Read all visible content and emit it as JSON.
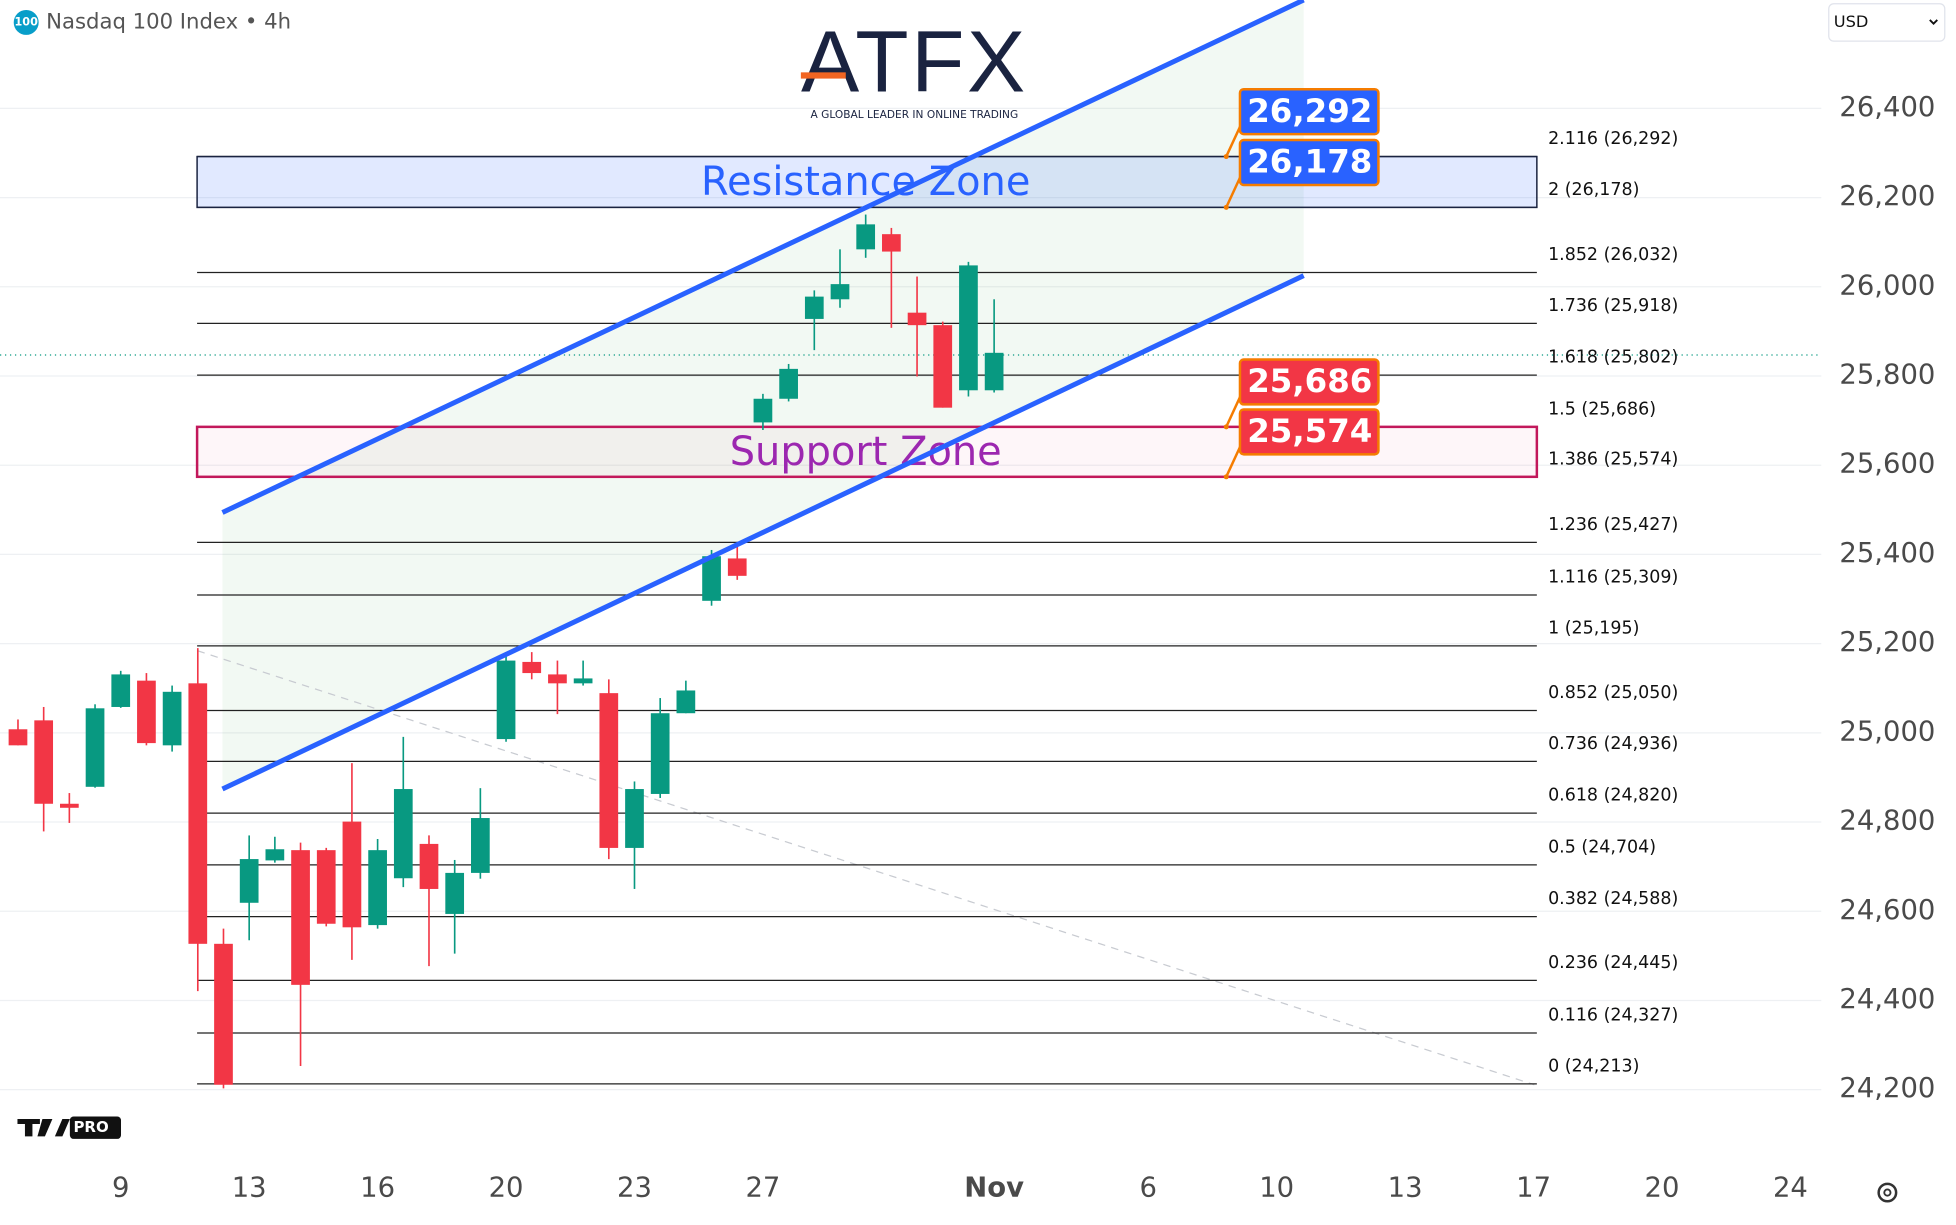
{
  "header": {
    "symbol_badge": "100",
    "title": "Nasdaq 100 Index • 4h",
    "currency": "USD",
    "logo": "ATFX",
    "tagline": "A GLOBAL LEADER IN ONLINE TRADING",
    "watermark": "PRO"
  },
  "chart_data": {
    "type": "candlestick",
    "grid": true,
    "xlim": [
      -0.7,
      70.2
    ],
    "ylim": [
      24070,
      26643
    ],
    "xticks": [
      {
        "value": 4,
        "label": "9"
      },
      {
        "value": 9,
        "label": "13"
      },
      {
        "value": 14,
        "label": "16"
      },
      {
        "value": 19,
        "label": "20"
      },
      {
        "value": 24,
        "label": "23"
      },
      {
        "value": 29,
        "label": "27"
      },
      {
        "value": 38,
        "label": "Nov"
      },
      {
        "value": 44,
        "label": "6"
      },
      {
        "value": 49,
        "label": "10"
      },
      {
        "value": 54,
        "label": "13"
      },
      {
        "value": 59,
        "label": "17"
      },
      {
        "value": 64,
        "label": "20"
      },
      {
        "value": 69,
        "label": "24"
      }
    ],
    "yticks": [
      {
        "value": 24200,
        "label": "24,200"
      },
      {
        "value": 24400,
        "label": "24,400"
      },
      {
        "value": 24600,
        "label": "24,600"
      },
      {
        "value": 24800,
        "label": "24,800"
      },
      {
        "value": 25000,
        "label": "25,000"
      },
      {
        "value": 25200,
        "label": "25,200"
      },
      {
        "value": 25400,
        "label": "25,400"
      },
      {
        "value": 25600,
        "label": "25,600"
      },
      {
        "value": 25800,
        "label": "25,800"
      },
      {
        "value": 26000,
        "label": "26,000"
      },
      {
        "value": 26200,
        "label": "26,200"
      },
      {
        "value": 26400,
        "label": "26,400"
      }
    ],
    "colors": {
      "up": "#089981",
      "down": "#f23645"
    },
    "x": [
      0,
      1,
      2,
      3,
      4,
      5,
      6,
      7,
      8,
      9,
      10,
      11,
      12,
      13,
      14,
      15,
      16,
      17,
      18,
      19,
      20,
      21,
      22,
      23,
      24,
      25,
      26,
      27,
      28,
      29,
      30,
      31,
      32,
      33,
      34,
      35,
      36,
      37,
      38
    ],
    "open": [
      25008,
      25028,
      24841,
      24879,
      25058,
      25117,
      24972,
      25111,
      24527,
      24619,
      24714,
      24737,
      24737,
      24801,
      24569,
      24674,
      24751,
      24594,
      24686,
      24986,
      25159,
      25131,
      25111,
      25089,
      24742,
      24863,
      25044,
      25296,
      25391,
      25696,
      25749,
      25928,
      25972,
      26084,
      26118,
      25942,
      25914,
      25768,
      25768
    ],
    "high": [
      25030,
      25058,
      24865,
      25064,
      25139,
      25134,
      25106,
      25190,
      24561,
      24770,
      24767,
      24754,
      24742,
      24932,
      24762,
      24991,
      24770,
      24715,
      24876,
      25181,
      25181,
      25162,
      25162,
      25120,
      24891,
      25078,
      25117,
      25410,
      25419,
      25760,
      25827,
      25992,
      26084,
      26162,
      26132,
      26023,
      25922,
      26056,
      25972
    ],
    "low": [
      24972,
      24779,
      24798,
      24877,
      25056,
      24972,
      24958,
      24421,
      24203,
      24535,
      24709,
      24253,
      24566,
      24491,
      24561,
      24654,
      24477,
      24505,
      24673,
      24980,
      25120,
      25042,
      25106,
      24717,
      24650,
      24854,
      25044,
      25285,
      25343,
      25679,
      25743,
      25858,
      25953,
      26065,
      25908,
      25799,
      25729,
      25754,
      25763
    ],
    "close": [
      24972,
      24841,
      24832,
      25055,
      25131,
      24977,
      25092,
      24527,
      24211,
      24717,
      24739,
      24435,
      24572,
      24564,
      24737,
      24874,
      24650,
      24686,
      24809,
      25162,
      25134,
      25111,
      25122,
      24742,
      24874,
      25044,
      25095,
      25396,
      25352,
      25749,
      25816,
      25978,
      26006,
      26140,
      26079,
      25914,
      25729,
      26048,
      25852
    ],
    "fib_levels": [
      {
        "label": "2.116 (26,292)",
        "value": 26292
      },
      {
        "label": "2 (26,178)",
        "value": 26178
      },
      {
        "label": "1.852 (26,032)",
        "value": 26032
      },
      {
        "label": "1.736 (25,918)",
        "value": 25918
      },
      {
        "label": "1.618 (25,802)",
        "value": 25802
      },
      {
        "label": "1.5 (25,686)",
        "value": 25686
      },
      {
        "label": "1.386 (25,574)",
        "value": 25574
      },
      {
        "label": "1.236 (25,427)",
        "value": 25427
      },
      {
        "label": "1.116 (25,309)",
        "value": 25309
      },
      {
        "label": "1 (25,195)",
        "value": 25195
      },
      {
        "label": "0.852 (25,050)",
        "value": 25050
      },
      {
        "label": "0.736 (24,936)",
        "value": 24936
      },
      {
        "label": "0.618 (24,820)",
        "value": 24820
      },
      {
        "label": "0.5 (24,704)",
        "value": 24704
      },
      {
        "label": "0.382 (24,588)",
        "value": 24588
      },
      {
        "label": "0.236 (24,445)",
        "value": 24445
      },
      {
        "label": "0.116 (24,327)",
        "value": 24327
      },
      {
        "label": "0 (24,213)",
        "value": 24213
      }
    ],
    "zones": [
      {
        "label": "Resistance Zone",
        "low": 26178,
        "high": 26292,
        "color": "#2962ff"
      },
      {
        "label": "Support Zone",
        "low": 25574,
        "high": 25686,
        "color": "#9c27b0"
      }
    ],
    "price_labels": [
      {
        "value": 26292,
        "label": "26,292",
        "color": "#2962ff"
      },
      {
        "value": 26178,
        "label": "26,178",
        "color": "#2962ff"
      },
      {
        "value": 25686,
        "label": "25,686",
        "color": "#f23645"
      },
      {
        "value": 25574,
        "label": "25,574",
        "color": "#f23645"
      }
    ],
    "channel": {
      "color": "#2962ff",
      "upper": {
        "x": [
          7.96,
          50.05
        ],
        "y": [
          25494,
          26643
        ]
      },
      "lower": {
        "x": [
          7.96,
          50.05
        ],
        "y": [
          24874,
          26025
        ]
      }
    },
    "trend_line": {
      "x": [
        6.99,
        59.03
      ],
      "y": [
        25184,
        24211
      ]
    },
    "last_price": 25847
  }
}
